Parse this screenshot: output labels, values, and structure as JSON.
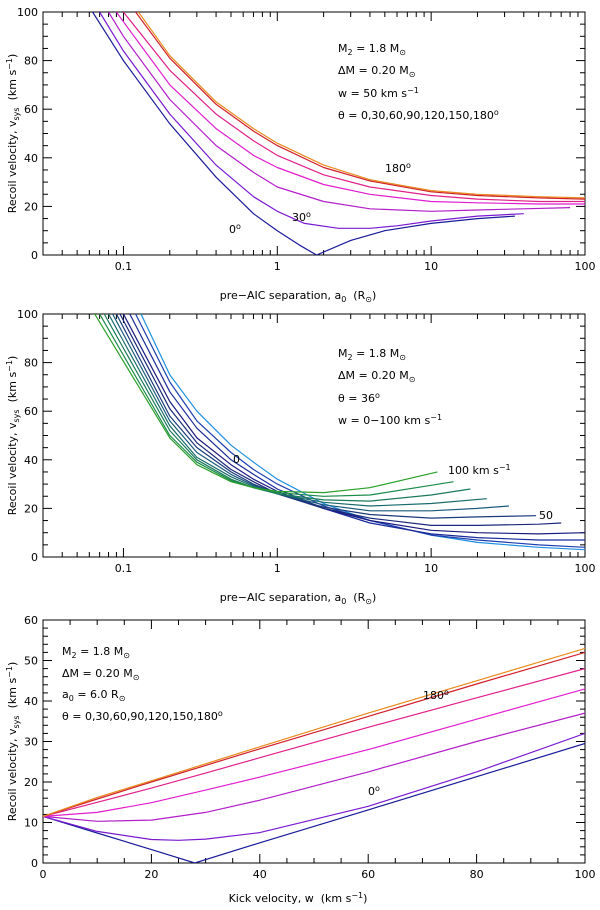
{
  "chart_data": [
    {
      "type": "line",
      "panel": "top",
      "xscale": "log",
      "xlim": [
        0.03,
        100
      ],
      "ylim": [
        0,
        100
      ],
      "xticks": [
        "0.1",
        "1",
        "10",
        "100"
      ],
      "yticks": [
        "0",
        "20",
        "40",
        "60",
        "80",
        "100"
      ],
      "xlabel": "pre−AIC separation, a",
      "xlabel_sub": "0",
      "xlabel_unit": "(R",
      "xlabel_unit_sub": "⊙",
      "xlabel_close": ")",
      "ylabel": "Recoil velocity, v",
      "ylabel_sub": "sys",
      "ylabel_unit": "(km s",
      "ylabel_unit_sup": "−1",
      "ylabel_close": ")",
      "annotations": [
        {
          "text": "M",
          "sub": "2",
          "rest": " = 1.8 M",
          "sub2": "⊙"
        },
        {
          "text": "ΔM = 0.20 M",
          "sub": "⊙",
          "rest": "",
          "sub2": ""
        },
        {
          "text": "w = 50 km s",
          "sup": "−1"
        },
        {
          "text": "θ = 0,30,60,90,120,150,180",
          "sup": "o"
        }
      ],
      "curve_labels": [
        {
          "text": "180",
          "sup": "o"
        },
        {
          "text": "30",
          "sup": "o"
        },
        {
          "text": "0",
          "sup": "o"
        }
      ],
      "colors": [
        "#1a1a9a",
        "#7a1ad0",
        "#b21ec8",
        "#e01ecf",
        "#e0208a",
        "#d01f2a",
        "#e88a1e"
      ],
      "series": [
        {
          "theta": 0,
          "x": [
            0.063,
            0.1,
            0.2,
            0.4,
            0.7,
            1.0,
            1.4,
            1.8,
            3,
            5,
            10,
            20,
            35
          ],
          "y": [
            100,
            80,
            54,
            32,
            17,
            10,
            4,
            0,
            6,
            10,
            13,
            15,
            16
          ]
        },
        {
          "theta": 30,
          "x": [
            0.07,
            0.1,
            0.2,
            0.4,
            0.7,
            1.0,
            1.5,
            2.5,
            4,
            6,
            10,
            20,
            40
          ],
          "y": [
            100,
            84,
            58,
            37,
            24,
            18,
            13,
            11,
            11,
            12,
            14,
            16,
            17
          ]
        },
        {
          "theta": 60,
          "x": [
            0.08,
            0.1,
            0.2,
            0.4,
            0.7,
            1,
            2,
            4,
            10,
            20,
            40,
            80
          ],
          "y": [
            100,
            90,
            64,
            45,
            34,
            28,
            22,
            19,
            18,
            18.5,
            19,
            19.5
          ]
        },
        {
          "theta": 90,
          "x": [
            0.09,
            0.1,
            0.2,
            0.4,
            0.7,
            1,
            2,
            4,
            10,
            20,
            50,
            100
          ],
          "y": [
            100,
            96,
            70,
            52,
            41,
            36,
            29,
            25,
            22,
            21.5,
            21,
            21
          ]
        },
        {
          "theta": 120,
          "x": [
            0.1,
            0.2,
            0.4,
            0.7,
            1,
            2,
            4,
            10,
            20,
            50,
            100
          ],
          "y": [
            100,
            76,
            58,
            47,
            41,
            33,
            28,
            24.5,
            23,
            22,
            22
          ]
        },
        {
          "theta": 150,
          "x": [
            0.12,
            0.2,
            0.4,
            0.7,
            1,
            2,
            4,
            10,
            20,
            50,
            100
          ],
          "y": [
            100,
            81,
            62,
            51,
            45,
            36,
            30.5,
            26,
            24.5,
            23.5,
            23
          ]
        },
        {
          "theta": 180,
          "x": [
            0.125,
            0.2,
            0.4,
            0.7,
            1,
            2,
            4,
            10,
            20,
            50,
            100
          ],
          "y": [
            100,
            82,
            63,
            52,
            46,
            37,
            31,
            26.5,
            25,
            24,
            23.5
          ]
        }
      ]
    },
    {
      "type": "line",
      "panel": "middle",
      "xscale": "log",
      "xlim": [
        0.03,
        100
      ],
      "ylim": [
        0,
        100
      ],
      "xticks": [
        "0.1",
        "1",
        "10",
        "100"
      ],
      "yticks": [
        "0",
        "20",
        "40",
        "60",
        "80",
        "100"
      ],
      "xlabel": "pre−AIC separation, a",
      "xlabel_sub": "0",
      "xlabel_unit": "(R",
      "xlabel_unit_sub": "⊙",
      "xlabel_close": ")",
      "ylabel": "Recoil velocity, v",
      "ylabel_sub": "sys",
      "ylabel_unit": "(km s",
      "ylabel_unit_sup": "−1",
      "ylabel_close": ")",
      "annotations": [
        {
          "text": "M",
          "sub": "2",
          "rest": " = 1.8 M",
          "sub2": "⊙"
        },
        {
          "text": "ΔM = 0.20 M",
          "sub": "⊙",
          "rest": "",
          "sub2": ""
        },
        {
          "text": "θ = 36",
          "sup": "o"
        },
        {
          "text": "w = 0−100 km s",
          "sup": "−1"
        }
      ],
      "curve_labels": [
        {
          "text": "0"
        },
        {
          "text": "100 km s",
          "sup": "−1"
        },
        {
          "text": "50"
        }
      ],
      "series": [
        {
          "w": 0,
          "color": "#1f8fe0",
          "x": [
            0.13,
            0.2,
            0.3,
            0.5,
            0.7,
            1,
            2,
            4,
            10,
            20,
            50,
            100
          ],
          "y": [
            100,
            75,
            60,
            46,
            39,
            32,
            22,
            15,
            9,
            6,
            4,
            3
          ]
        },
        {
          "w": 10,
          "color": "#1f3fb0",
          "x": [
            0.12,
            0.2,
            0.3,
            0.5,
            0.7,
            1,
            2,
            4,
            10,
            20,
            50,
            100
          ],
          "y": [
            100,
            72,
            56,
            43,
            36,
            30,
            21,
            15,
            9,
            7,
            5,
            4
          ]
        },
        {
          "w": 20,
          "color": "#1a2a9a",
          "x": [
            0.11,
            0.2,
            0.3,
            0.5,
            0.7,
            1,
            2,
            4,
            10,
            20,
            50,
            100
          ],
          "y": [
            100,
            68,
            53,
            40,
            34,
            28,
            20,
            14,
            9.5,
            8,
            7,
            7
          ]
        },
        {
          "w": 30,
          "color": "#1a1a80",
          "x": [
            0.1,
            0.2,
            0.3,
            0.5,
            0.7,
            1,
            2,
            4,
            10,
            20,
            50,
            100
          ],
          "y": [
            100,
            64,
            49,
            38,
            32,
            27,
            20,
            15,
            11,
            10,
            9.5,
            10
          ]
        },
        {
          "w": 40,
          "color": "#1a2a7a",
          "x": [
            0.095,
            0.2,
            0.3,
            0.5,
            0.7,
            1,
            2,
            4,
            10,
            20,
            50,
            70
          ],
          "y": [
            100,
            61,
            47,
            36,
            31,
            26,
            20,
            16,
            13,
            13,
            13.5,
            14
          ]
        },
        {
          "w": 50,
          "color": "#1a3a7a",
          "x": [
            0.09,
            0.2,
            0.3,
            0.5,
            0.7,
            1,
            2,
            4,
            10,
            20,
            48
          ],
          "y": [
            100,
            58,
            45,
            35,
            30,
            26,
            20.5,
            17.5,
            16,
            16.5,
            17
          ]
        },
        {
          "w": 60,
          "color": "#1a5a7a",
          "x": [
            0.085,
            0.2,
            0.3,
            0.5,
            0.7,
            1,
            2,
            4,
            10,
            20,
            32
          ],
          "y": [
            100,
            56,
            43,
            34,
            29.5,
            26,
            21.5,
            19,
            19,
            20,
            21
          ]
        },
        {
          "w": 70,
          "color": "#1a6a6a",
          "x": [
            0.08,
            0.2,
            0.3,
            0.5,
            0.7,
            1,
            2,
            4,
            10,
            23
          ],
          "y": [
            100,
            54,
            41,
            33,
            29,
            26,
            22.5,
            21,
            22,
            24
          ]
        },
        {
          "w": 80,
          "color": "#1a7a5a",
          "x": [
            0.075,
            0.2,
            0.3,
            0.5,
            0.7,
            1,
            2,
            4,
            10,
            18
          ],
          "y": [
            100,
            52,
            40,
            32,
            28.5,
            26,
            23.5,
            23,
            25.5,
            28
          ]
        },
        {
          "w": 90,
          "color": "#1a8a4a",
          "x": [
            0.07,
            0.2,
            0.3,
            0.5,
            0.7,
            1,
            2,
            4,
            10,
            14
          ],
          "y": [
            100,
            50,
            39,
            31.5,
            28.5,
            26.5,
            25,
            25.5,
            29.5,
            31
          ]
        },
        {
          "w": 100,
          "color": "#2aa02a",
          "x": [
            0.065,
            0.2,
            0.3,
            0.5,
            0.7,
            1,
            2,
            4,
            11
          ],
          "y": [
            100,
            49,
            38,
            31,
            28.5,
            27,
            26.5,
            28.5,
            35
          ]
        }
      ]
    },
    {
      "type": "line",
      "panel": "bottom",
      "xscale": "linear",
      "xlim": [
        0,
        100
      ],
      "ylim": [
        0,
        60
      ],
      "xticks": [
        "0",
        "20",
        "40",
        "60",
        "80",
        "100"
      ],
      "yticks": [
        "0",
        "10",
        "20",
        "30",
        "40",
        "50",
        "60"
      ],
      "xlabel": "Kick velocity, w",
      "xlabel_unit": "(km s",
      "xlabel_unit_sup": "−1",
      "xlabel_close": ")",
      "ylabel": "Recoil velocity, v",
      "ylabel_sub": "sys",
      "ylabel_unit": "(km s",
      "ylabel_unit_sup": "−1",
      "ylabel_close": ")",
      "annotations": [
        {
          "text": "M",
          "sub": "2",
          "rest": " = 1.8 M",
          "sub2": "⊙"
        },
        {
          "text": "ΔM = 0.20 M",
          "sub": "⊙",
          "rest": "",
          "sub2": ""
        },
        {
          "text": "a",
          "sub": "0",
          "rest": " = 6.0 R",
          "sub2": "⊙"
        },
        {
          "text": "θ = 0,30,60,90,120,150,180",
          "sup": "o"
        }
      ],
      "curve_labels": [
        {
          "text": "180",
          "sup": "o"
        },
        {
          "text": "0",
          "sup": "o"
        }
      ],
      "colors": [
        "#1a1a9a",
        "#7a1ad0",
        "#b21ec8",
        "#e01ecf",
        "#e0208a",
        "#d01f2a",
        "#e88a1e"
      ],
      "series": [
        {
          "theta": 0,
          "x": [
            0,
            10,
            20,
            28,
            40,
            60,
            80,
            100
          ],
          "y": [
            11.5,
            7.4,
            3.3,
            0,
            5,
            13.1,
            21.3,
            29.5
          ]
        },
        {
          "theta": 30,
          "x": [
            0,
            10,
            20,
            25,
            30,
            40,
            60,
            80,
            100
          ],
          "y": [
            11.5,
            7.8,
            5.8,
            5.6,
            5.9,
            7.5,
            14,
            22.5,
            32
          ]
        },
        {
          "theta": 60,
          "x": [
            0,
            10,
            20,
            30,
            40,
            60,
            80,
            100
          ],
          "y": [
            11.5,
            10.3,
            10.6,
            12.5,
            15.5,
            22.5,
            30,
            37
          ]
        },
        {
          "theta": 90,
          "x": [
            0,
            10,
            20,
            30,
            40,
            60,
            80,
            100
          ],
          "y": [
            11.5,
            12.5,
            14.9,
            18,
            21.2,
            28,
            35.5,
            43
          ]
        },
        {
          "theta": 120,
          "x": [
            0,
            10,
            20,
            30,
            40,
            60,
            80,
            100
          ],
          "y": [
            11.5,
            15,
            18.5,
            22.2,
            26,
            33.5,
            40.8,
            48
          ]
        },
        {
          "theta": 150,
          "x": [
            0,
            10,
            20,
            30,
            40,
            60,
            80,
            100
          ],
          "y": [
            11.5,
            15.8,
            20,
            24.1,
            28.2,
            36.2,
            44.2,
            52
          ]
        },
        {
          "theta": 180,
          "x": [
            0,
            10,
            20,
            30,
            40,
            60,
            80,
            100
          ],
          "y": [
            11.5,
            16.2,
            20.3,
            24.5,
            28.7,
            37,
            45,
            53
          ]
        }
      ]
    }
  ]
}
